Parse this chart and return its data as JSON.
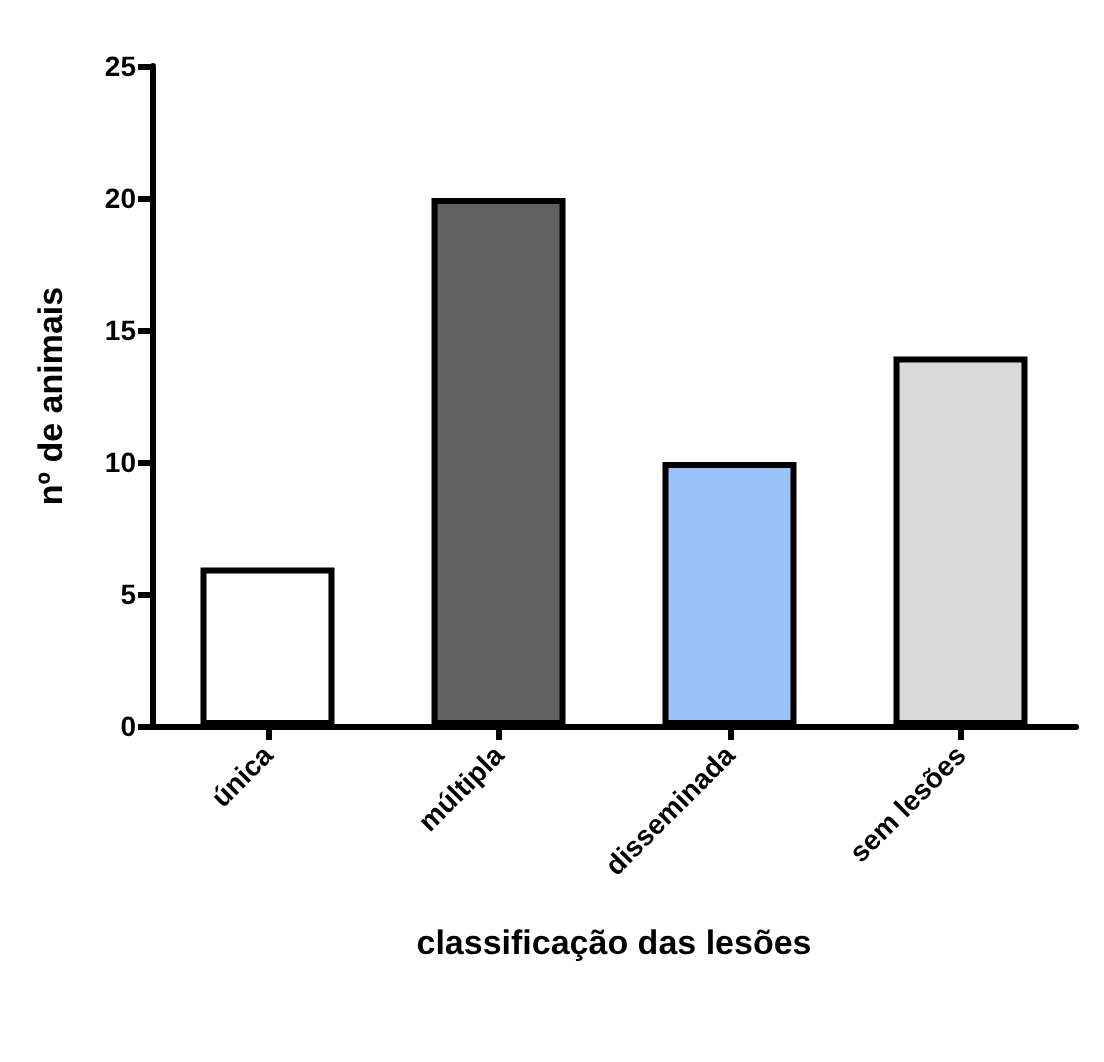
{
  "chart_data": {
    "type": "bar",
    "xlabel": "classificação das lesões",
    "ylabel": "nº de animais",
    "categories": [
      "única",
      "múltipla",
      "disseminada",
      "sem lesões"
    ],
    "values": [
      6,
      20,
      10,
      14
    ],
    "colors": [
      "#ffffff",
      "#606060",
      "#9ac3f7",
      "#d9d9d9"
    ],
    "ylim": [
      0,
      25
    ],
    "yticks": [
      0,
      5,
      10,
      15,
      20,
      25
    ],
    "grid": false
  }
}
